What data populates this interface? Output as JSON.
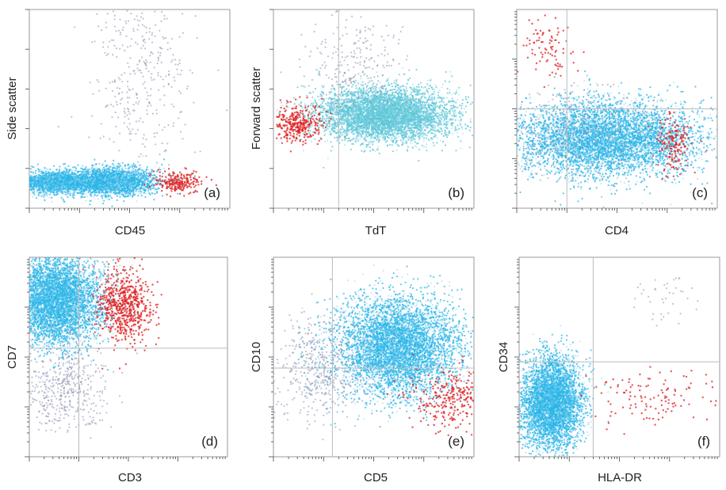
{
  "figure": {
    "colors": {
      "blast": "#29b6e8",
      "blast_light": "#8fd4ee",
      "tb_cyan": "#5cc8d6",
      "normal": "#e01f1f",
      "debris": "#8a8fb0",
      "frame": "#555555",
      "gate": "#bbbbbb"
    }
  },
  "chart_data": [
    {
      "id": "a",
      "type": "scatter",
      "panel_label": "(a)",
      "xlabel": "CD45",
      "ylabel": "Side scatter",
      "xscale": "log",
      "yscale": "linear",
      "xlim": [
        1,
        10000
      ],
      "ylim": [
        0,
        1000
      ],
      "gates": {
        "x": null,
        "y": null
      },
      "series": [
        {
          "population": "blast",
          "color": "blast",
          "points": 1700,
          "center": [
            3.0,
            130
          ],
          "spread": [
            0.7,
            28
          ]
        },
        {
          "population": "blast",
          "color": "blast",
          "points": 2600,
          "center": [
            40,
            135
          ],
          "spread": [
            0.9,
            35
          ]
        },
        {
          "population": "normal",
          "color": "normal",
          "points": 220,
          "center": [
            900,
            130
          ],
          "spread": [
            0.5,
            28
          ]
        },
        {
          "population": "debris",
          "color": "debris",
          "points": 380,
          "center": [
            150,
            650
          ],
          "spread": [
            1.0,
            260
          ]
        }
      ]
    },
    {
      "id": "b",
      "type": "scatter",
      "panel_label": "(b)",
      "xlabel": "TdT",
      "ylabel": "Forward scatter",
      "xscale": "log",
      "yscale": "linear",
      "xlim": [
        1,
        10000
      ],
      "ylim": [
        0,
        1000
      ],
      "gates": {
        "x": 20,
        "y": null
      },
      "series": [
        {
          "population": "tdt_pos_blast",
          "color": "tb_cyan",
          "points": 5200,
          "center": [
            160,
            470
          ],
          "spread": [
            1.3,
            65
          ]
        },
        {
          "population": "normal",
          "color": "normal",
          "points": 320,
          "center": [
            3.0,
            420
          ],
          "spread": [
            0.5,
            45
          ]
        },
        {
          "population": "debris",
          "color": "debris",
          "points": 260,
          "center": [
            40,
            700
          ],
          "spread": [
            1.0,
            130
          ]
        }
      ]
    },
    {
      "id": "c",
      "type": "scatter",
      "panel_label": "(c)",
      "xlabel": "CD4",
      "ylabel": "",
      "xscale": "log",
      "yscale": "log",
      "xlim": [
        1,
        10000
      ],
      "ylim": [
        1,
        10000
      ],
      "gates": {
        "x": 10,
        "y": 100
      },
      "series": [
        {
          "population": "blast",
          "color": "blast",
          "points": 5200,
          "center": [
            60,
            25
          ],
          "spread": [
            1.8,
            0.75
          ]
        },
        {
          "population": "normal",
          "color": "normal",
          "points": 170,
          "center": [
            1400,
            20
          ],
          "spread": [
            0.35,
            0.55
          ]
        },
        {
          "population": "normal",
          "color": "normal",
          "points": 90,
          "center": [
            5,
            1500
          ],
          "spread": [
            0.5,
            0.6
          ]
        },
        {
          "population": "debris",
          "color": "debris",
          "points": 320,
          "center": [
            15,
            30
          ],
          "spread": [
            1.6,
            0.9
          ]
        }
      ]
    },
    {
      "id": "d",
      "type": "scatter",
      "panel_label": "(d)",
      "xlabel": "CD3",
      "ylabel": "CD7",
      "xscale": "log",
      "yscale": "log",
      "xlim": [
        1,
        10000
      ],
      "ylim": [
        1,
        10000
      ],
      "gates": {
        "x": 10,
        "y": 150
      },
      "series": [
        {
          "population": "blast",
          "color": "blast",
          "points": 5200,
          "center": [
            3.5,
            1400
          ],
          "spread": [
            0.9,
            0.9
          ]
        },
        {
          "population": "normal",
          "color": "normal",
          "points": 650,
          "center": [
            80,
            1100
          ],
          "spread": [
            0.55,
            0.75
          ]
        },
        {
          "population": "debris",
          "color": "debris",
          "points": 480,
          "center": [
            5,
            25
          ],
          "spread": [
            0.9,
            0.9
          ]
        }
      ]
    },
    {
      "id": "e",
      "type": "scatter",
      "panel_label": "(e)",
      "xlabel": "CD5",
      "ylabel": "CD10",
      "xscale": "log",
      "yscale": "log",
      "xlim": [
        1,
        10000
      ],
      "ylim": [
        1,
        10000
      ],
      "gates": {
        "x": 15,
        "y": 60
      },
      "series": [
        {
          "population": "blast",
          "color": "blast",
          "points": 5400,
          "center": [
            300,
            160
          ],
          "spread": [
            1.2,
            1.0
          ]
        },
        {
          "population": "normal",
          "color": "normal",
          "points": 300,
          "center": [
            3500,
            14
          ],
          "spread": [
            0.8,
            0.6
          ]
        },
        {
          "population": "debris",
          "color": "debris",
          "points": 480,
          "center": [
            8,
            60
          ],
          "spread": [
            1.0,
            1.1
          ]
        }
      ]
    },
    {
      "id": "f",
      "type": "scatter",
      "panel_label": "(f)",
      "xlabel": "HLA-DR",
      "ylabel": "CD34",
      "xscale": "log",
      "yscale": "log",
      "xlim": [
        1,
        10000
      ],
      "ylim": [
        1,
        10000
      ],
      "gates": {
        "x": 30,
        "y": 80
      },
      "series": [
        {
          "population": "blast",
          "color": "blast",
          "points": 4600,
          "center": [
            4.5,
            12
          ],
          "spread": [
            0.6,
            0.9
          ]
        },
        {
          "population": "normal",
          "color": "normal",
          "points": 120,
          "center": [
            500,
            15
          ],
          "spread": [
            1.5,
            0.6
          ]
        },
        {
          "population": "debris",
          "color": "debris",
          "points": 40,
          "center": [
            1000,
            1500
          ],
          "spread": [
            0.8,
            0.6
          ]
        }
      ]
    }
  ]
}
